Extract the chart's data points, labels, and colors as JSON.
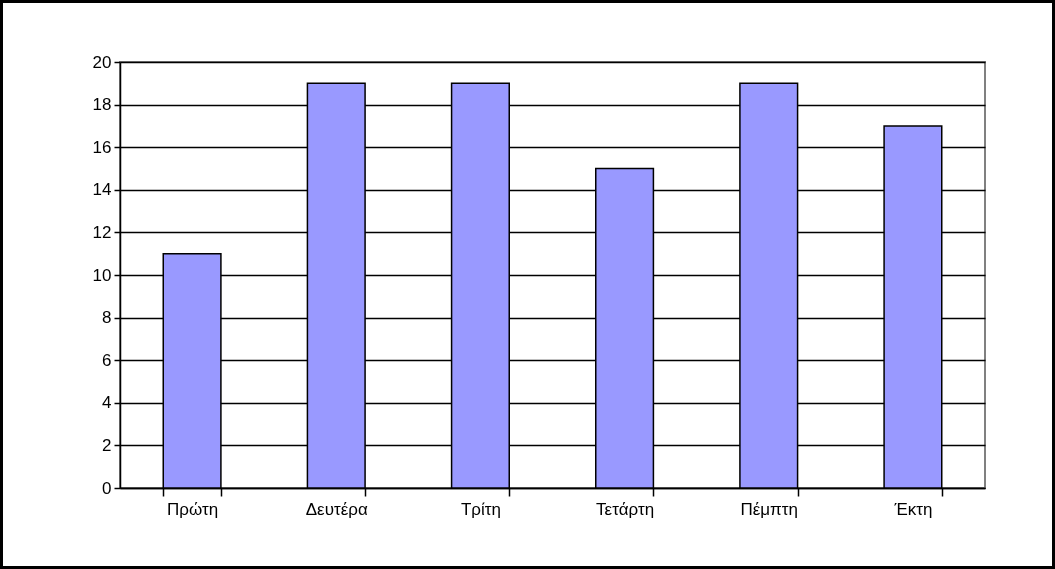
{
  "chart_data": {
    "type": "bar",
    "categories": [
      "Πρώτη",
      "Δευτέρα",
      "Τρίτη",
      "Τετάρτη",
      "Πέμπτη",
      "Έκτη"
    ],
    "values": [
      11,
      19,
      19,
      15,
      19,
      17
    ],
    "color": "#9999ff",
    "ylim": [
      0,
      20
    ],
    "yticks": [
      0,
      2,
      4,
      6,
      8,
      10,
      12,
      14,
      16,
      18,
      20
    ],
    "grid": "y"
  }
}
